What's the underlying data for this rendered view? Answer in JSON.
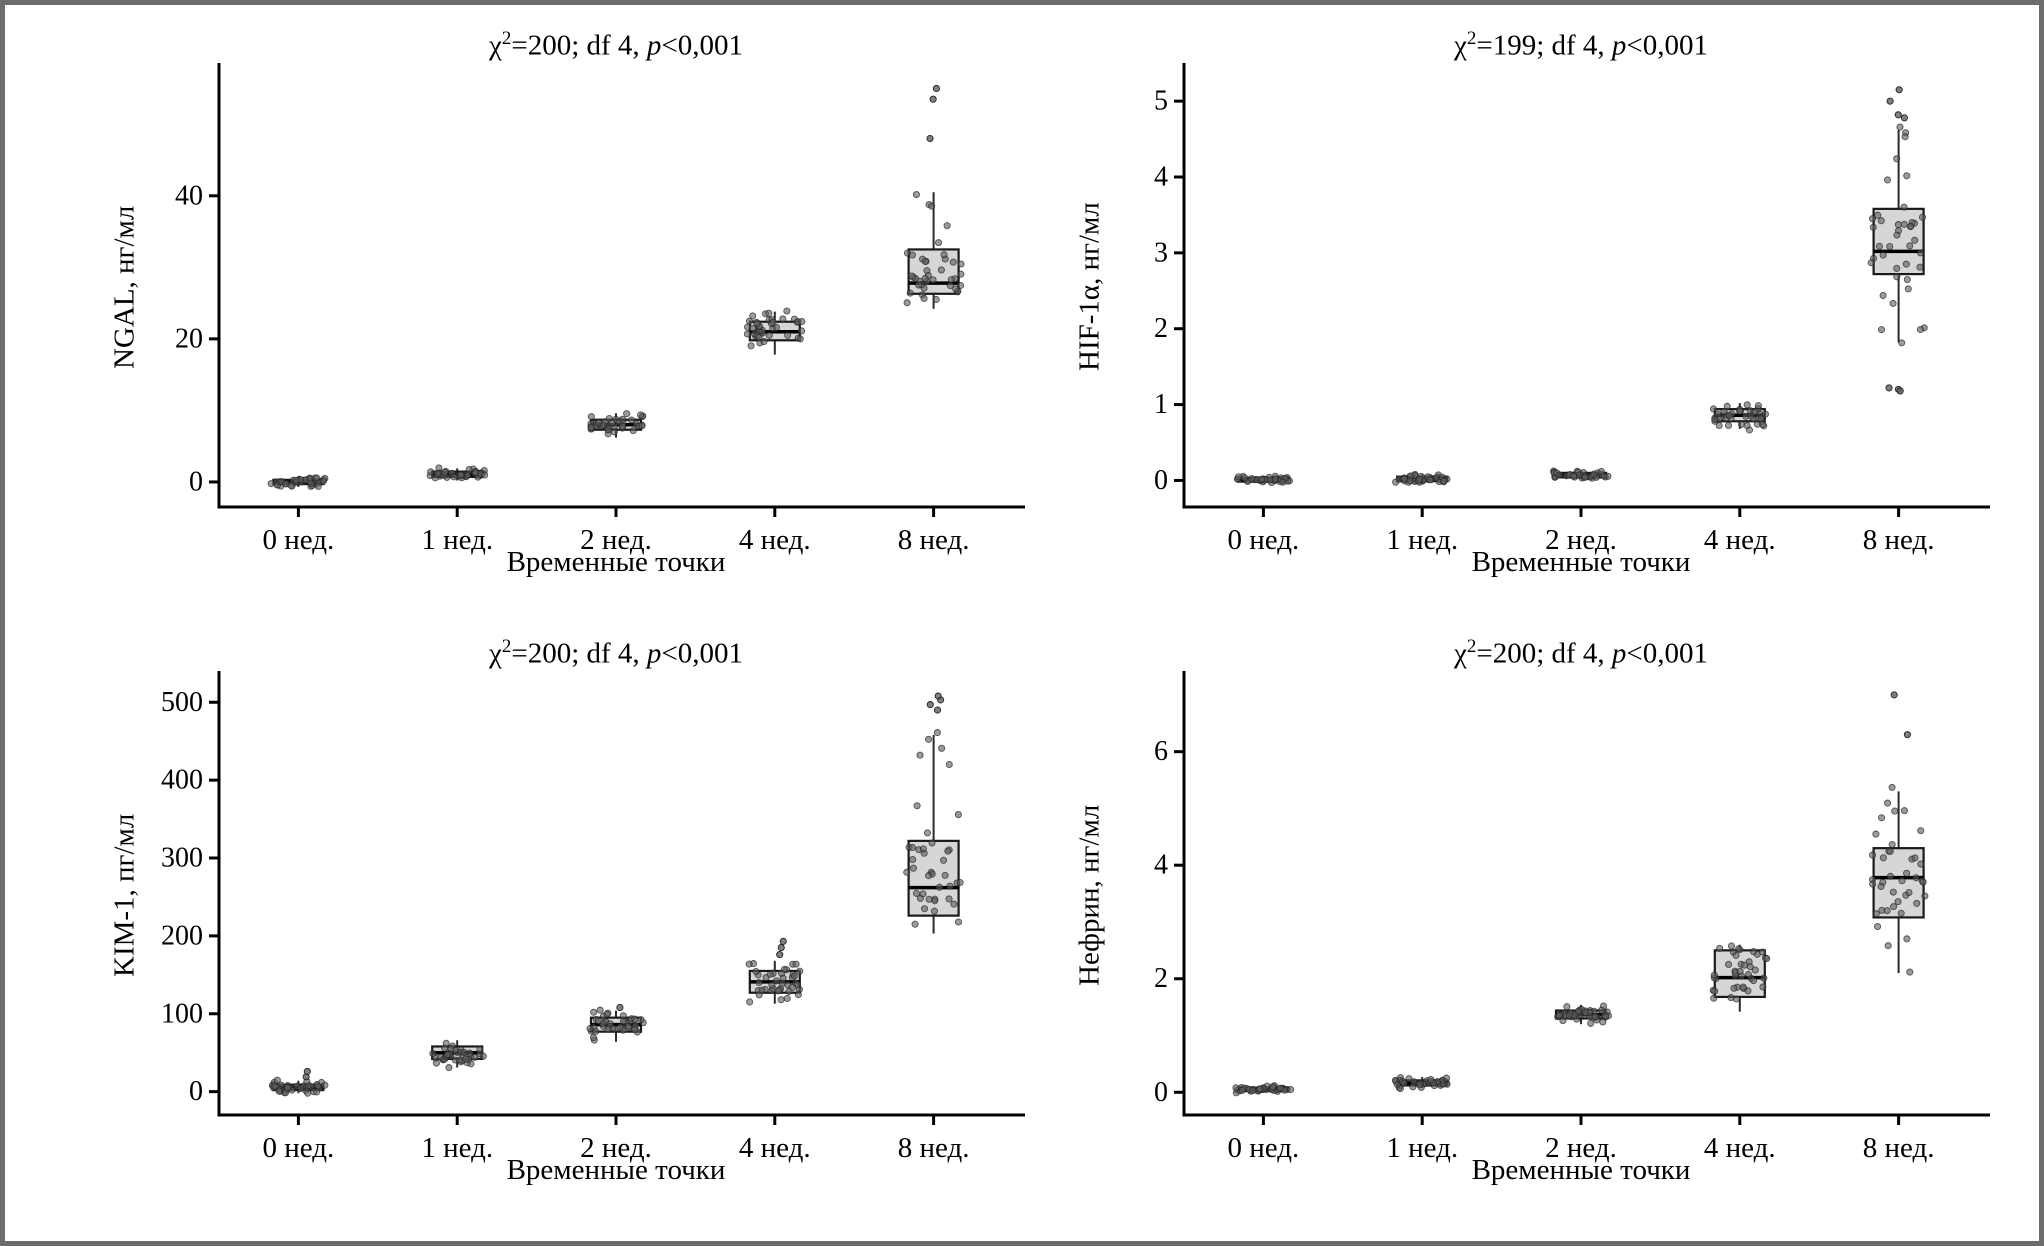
{
  "figure": {
    "background": "#ffffff",
    "border_color": "#6c6c6c",
    "text_color": "#000000",
    "style": {
      "box_fill": "#d6d6d6",
      "box_stroke": "#1a1a1a",
      "median_color": "#000000",
      "whisker_color": "#2a2a2a",
      "point_color": "#5f5f5f",
      "axis_color": "#000000"
    }
  },
  "chart_data": [
    {
      "id": "ngal",
      "type": "boxplot",
      "title_text": "χ²=200; df 4, p<0,001",
      "title": {
        "chi": "χ",
        "sup": "2",
        "mid": "=200; df 4, ",
        "p": "p",
        "tail": "<0,001"
      },
      "ylabel": "NGAL, нг/мл",
      "xlabel": "Временные точки",
      "categories": [
        "0 нед.",
        "1 нед.",
        "2 нед.",
        "4 нед.",
        "8 нед."
      ],
      "yticks": [
        0,
        20,
        40
      ],
      "ylim": [
        -3.5,
        58
      ],
      "grid": false,
      "points_per_group": 40,
      "boxes": [
        {
          "lo": -0.7,
          "q1": -0.3,
          "median": 0.0,
          "q3": 0.3,
          "hi": 0.8,
          "outliers": []
        },
        {
          "lo": 0.2,
          "q1": 0.7,
          "median": 1.05,
          "q3": 1.45,
          "hi": 1.9,
          "outliers": []
        },
        {
          "lo": 6.2,
          "q1": 7.3,
          "median": 8.0,
          "q3": 8.7,
          "hi": 9.6,
          "outliers": []
        },
        {
          "lo": 17.8,
          "q1": 19.8,
          "median": 21.0,
          "q3": 22.4,
          "hi": 23.8,
          "outliers": []
        },
        {
          "lo": 24.2,
          "q1": 26.3,
          "median": 27.8,
          "q3": 32.5,
          "hi": 40.5,
          "outliers": [
            48,
            53.5,
            55
          ]
        }
      ]
    },
    {
      "id": "hif1a",
      "type": "boxplot",
      "title_text": "χ²=199; df 4, p<0,001",
      "title": {
        "chi": "χ",
        "sup": "2",
        "mid": "=199; df 4, ",
        "p": "p",
        "tail": "<0,001"
      },
      "ylabel": "HIF-1α, нг/мл",
      "xlabel": "Временные точки",
      "categories": [
        "0 нед.",
        "1 нед.",
        "2 нед.",
        "4 нед.",
        "8 нед."
      ],
      "yticks": [
        0,
        1,
        2,
        3,
        4,
        5
      ],
      "ylim": [
        -0.35,
        5.45
      ],
      "grid": false,
      "points_per_group": 40,
      "boxes": [
        {
          "lo": -0.03,
          "q1": -0.015,
          "median": 0.01,
          "q3": 0.035,
          "hi": 0.06,
          "outliers": []
        },
        {
          "lo": -0.02,
          "q1": -0.01,
          "median": 0.02,
          "q3": 0.05,
          "hi": 0.08,
          "outliers": []
        },
        {
          "lo": 0.02,
          "q1": 0.04,
          "median": 0.07,
          "q3": 0.1,
          "hi": 0.13,
          "outliers": []
        },
        {
          "lo": 0.68,
          "q1": 0.78,
          "median": 0.86,
          "q3": 0.94,
          "hi": 1.02,
          "outliers": []
        },
        {
          "lo": 1.82,
          "q1": 2.72,
          "median": 3.02,
          "q3": 3.58,
          "hi": 4.62,
          "outliers": [
            5.15,
            5.0,
            4.82,
            4.78,
            1.22,
            1.2,
            1.18
          ]
        }
      ]
    },
    {
      "id": "kim1",
      "type": "boxplot",
      "title_text": "χ²=200; df 4, p<0,001",
      "title": {
        "chi": "χ",
        "sup": "2",
        "mid": "=200; df 4, ",
        "p": "p",
        "tail": "<0,001"
      },
      "ylabel": "KIM-1, пг/мл",
      "xlabel": "Временные точки",
      "categories": [
        "0 нед.",
        "1 нед.",
        "2 нед.",
        "4 нед.",
        "8 нед."
      ],
      "yticks": [
        0,
        100,
        200,
        300,
        400,
        500
      ],
      "ylim": [
        -30,
        535
      ],
      "grid": false,
      "points_per_group": 40,
      "boxes": [
        {
          "lo": -2,
          "q1": 2,
          "median": 5,
          "q3": 9,
          "hi": 14,
          "outliers": [
            19,
            26
          ]
        },
        {
          "lo": 31,
          "q1": 42,
          "median": 50,
          "q3": 58,
          "hi": 66,
          "outliers": []
        },
        {
          "lo": 64,
          "q1": 77,
          "median": 86,
          "q3": 95,
          "hi": 104,
          "outliers": [
            108
          ]
        },
        {
          "lo": 113,
          "q1": 127,
          "median": 141,
          "q3": 155,
          "hi": 168,
          "outliers": [
            176,
            185,
            193
          ]
        },
        {
          "lo": 203,
          "q1": 226,
          "median": 262,
          "q3": 322,
          "hi": 458,
          "outliers": [
            490,
            497,
            503,
            508
          ]
        }
      ]
    },
    {
      "id": "nephrin",
      "type": "boxplot",
      "title_text": "χ²=200; df 4, p<0,001",
      "title": {
        "chi": "χ",
        "sup": "2",
        "mid": "=200; df 4, ",
        "p": "p",
        "tail": "<0,001"
      },
      "ylabel": "Нефрин, нг/мл",
      "xlabel": "Временные точки",
      "categories": [
        "0 нед.",
        "1 нед.",
        "2 нед.",
        "4 нед.",
        "8 нед."
      ],
      "yticks": [
        0,
        2,
        4,
        6
      ],
      "ylim": [
        -0.4,
        7.35
      ],
      "grid": false,
      "points_per_group": 40,
      "boxes": [
        {
          "lo": -0.01,
          "q1": 0.02,
          "median": 0.05,
          "q3": 0.08,
          "hi": 0.12,
          "outliers": []
        },
        {
          "lo": 0.07,
          "q1": 0.12,
          "median": 0.16,
          "q3": 0.21,
          "hi": 0.27,
          "outliers": []
        },
        {
          "lo": 1.2,
          "q1": 1.3,
          "median": 1.37,
          "q3": 1.44,
          "hi": 1.54,
          "outliers": []
        },
        {
          "lo": 1.42,
          "q1": 1.68,
          "median": 2.02,
          "q3": 2.5,
          "hi": 2.6,
          "outliers": []
        },
        {
          "lo": 2.1,
          "q1": 3.08,
          "median": 3.78,
          "q3": 4.3,
          "hi": 5.3,
          "outliers": [
            6.3,
            7.0
          ]
        }
      ]
    }
  ]
}
